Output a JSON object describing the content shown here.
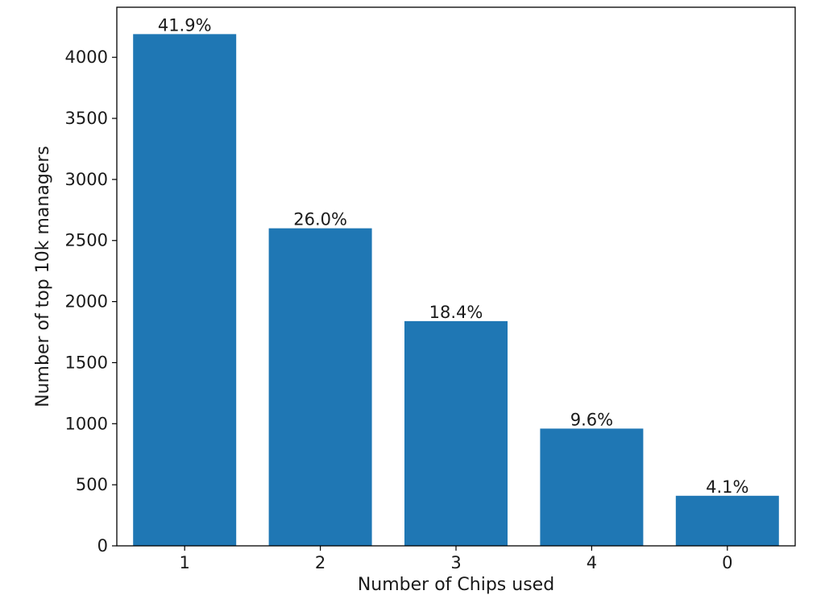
{
  "chart_data": {
    "type": "bar",
    "title": "",
    "xlabel": "Number of Chips used",
    "ylabel": "Number of top 10k managers",
    "categories": [
      "1",
      "2",
      "3",
      "4",
      "0"
    ],
    "values": [
      4190,
      2600,
      1840,
      960,
      410
    ],
    "data_labels": [
      "41.9%",
      "26.0%",
      "18.4%",
      "9.6%",
      "4.1%"
    ],
    "ylim": [
      0,
      4410
    ],
    "yticks": [
      0,
      500,
      1000,
      1500,
      2000,
      2500,
      3000,
      3500,
      4000
    ],
    "bar_color": "#1f77b4",
    "grid": false,
    "legend": "none"
  }
}
